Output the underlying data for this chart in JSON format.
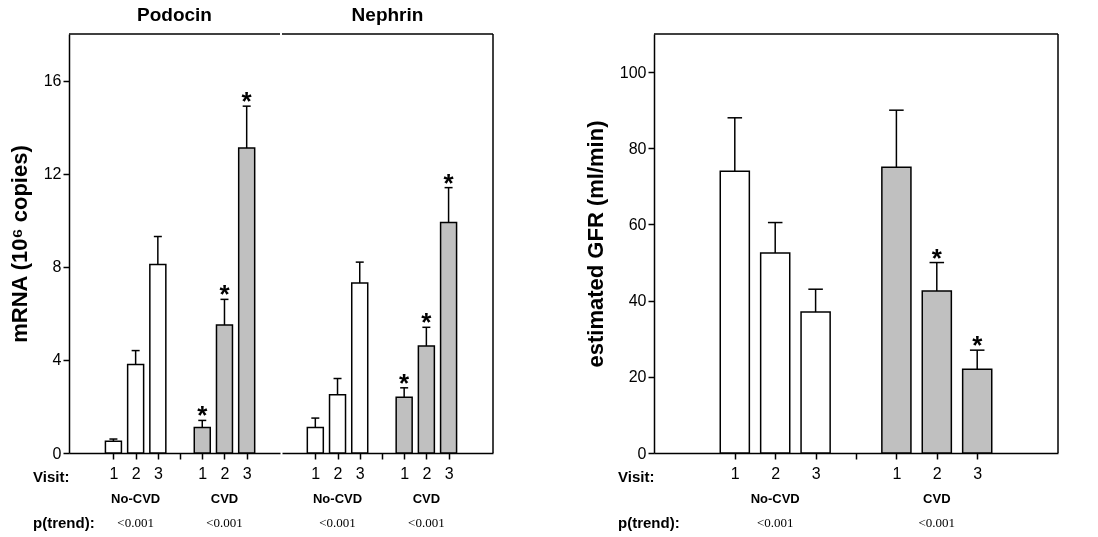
{
  "chart_data": [
    {
      "type": "bar",
      "title": "Podocin",
      "xlabel": "Visit:",
      "ylabel": "mRNA  (10⁶ copies)",
      "categories": [
        "1",
        "2",
        "3",
        null,
        "1",
        "2",
        "3"
      ],
      "ylim": [
        0,
        18
      ],
      "yticks": [
        0,
        4,
        8,
        12,
        16
      ],
      "values": [
        0.5,
        3.8,
        8.1,
        null,
        1.1,
        5.5,
        13.1
      ],
      "colors": [
        "#ffffff",
        "#ffffff",
        "#ffffff",
        null,
        "#c0c0c0",
        "#c0c0c0",
        "#c0c0c0"
      ],
      "errors": [
        [
          0.5,
          0.6
        ],
        [
          3.8,
          4.4
        ],
        [
          8.1,
          9.3
        ],
        null,
        [
          1.1,
          1.4
        ],
        [
          5.5,
          6.6
        ],
        [
          13.1,
          14.9
        ]
      ],
      "value_labels": [
        null,
        null,
        null,
        null,
        "*",
        "*",
        "*"
      ],
      "annotations": [
        "No-CVD",
        "CVD",
        "p(trend):",
        "<0.001",
        "<0.001"
      ]
    },
    {
      "type": "bar",
      "title": "Nephrin",
      "categories": [
        "1",
        "2",
        "3",
        null,
        "1",
        "2",
        "3"
      ],
      "ylim": [
        0,
        18
      ],
      "tick_labels": "x",
      "values": [
        1.1,
        2.5,
        7.3,
        null,
        2.4,
        4.6,
        9.9
      ],
      "colors": [
        "#ffffff",
        "#ffffff",
        "#ffffff",
        null,
        "#c0c0c0",
        "#c0c0c0",
        "#c0c0c0"
      ],
      "errors": [
        [
          1.1,
          1.5
        ],
        [
          2.5,
          3.2
        ],
        [
          7.3,
          8.2
        ],
        null,
        [
          2.4,
          2.8
        ],
        [
          4.6,
          5.4
        ],
        [
          9.9,
          11.4
        ]
      ],
      "value_labels": [
        null,
        null,
        null,
        null,
        "*",
        "*",
        "*"
      ],
      "annotations": [
        "No-CVD",
        "CVD",
        "<0.001",
        "<0.001"
      ]
    },
    {
      "type": "bar",
      "xlabel": "Visit:",
      "ylabel": "estimated GFR  (ml/min)",
      "categories": [
        "1",
        "2",
        "3",
        null,
        "1",
        "2",
        "3"
      ],
      "ylim": [
        0,
        110
      ],
      "yticks": [
        0,
        20,
        40,
        60,
        80,
        100
      ],
      "values": [
        74,
        52.5,
        37,
        null,
        75,
        42.5,
        22
      ],
      "colors": [
        "#ffffff",
        "#ffffff",
        "#ffffff",
        null,
        "#c0c0c0",
        "#c0c0c0",
        "#c0c0c0"
      ],
      "errors": [
        [
          74,
          88
        ],
        [
          52.5,
          60.5
        ],
        [
          37,
          43
        ],
        null,
        [
          75,
          90
        ],
        [
          42.5,
          50
        ],
        [
          22,
          27
        ]
      ],
      "value_labels": [
        null,
        null,
        null,
        null,
        null,
        "*",
        "*"
      ],
      "annotations": [
        "No-CVD",
        "CVD",
        "p(trend):",
        "<0.001",
        "<0.001"
      ]
    }
  ]
}
